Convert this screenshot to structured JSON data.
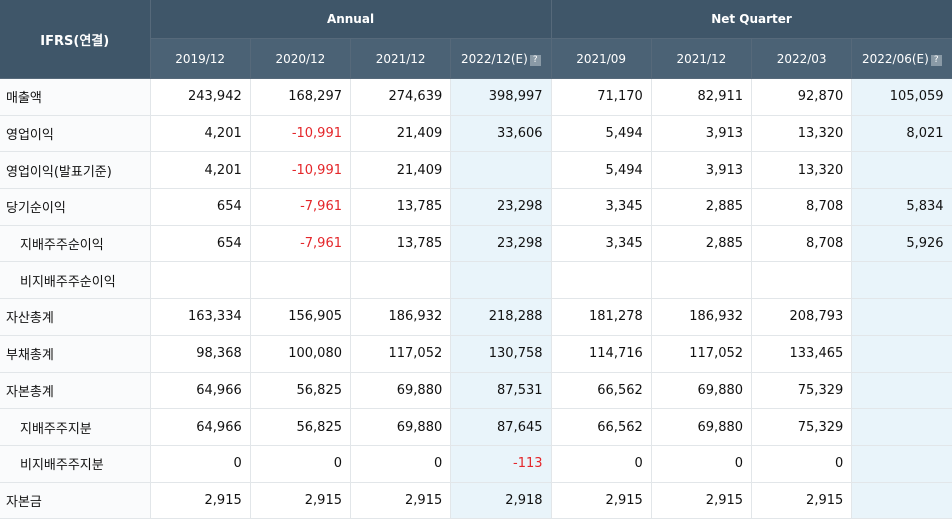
{
  "header": {
    "corner": "IFRS(연결)",
    "annual": "Annual",
    "quarter": "Net Quarter",
    "periods": [
      "2019/12",
      "2020/12",
      "2021/12",
      "2022/12(E)",
      "2021/09",
      "2021/12",
      "2022/03",
      "2022/06(E)"
    ],
    "estimate_marker": "?"
  },
  "rows": [
    {
      "label": "매출액",
      "cells": [
        "243,942",
        "168,297",
        "274,639",
        "398,997",
        "71,170",
        "82,911",
        "92,870",
        "105,059"
      ]
    },
    {
      "label": "영업이익",
      "cells": [
        "4,201",
        "-10,991",
        "21,409",
        "33,606",
        "5,494",
        "3,913",
        "13,320",
        "8,021"
      ]
    },
    {
      "label": "영업이익(발표기준)",
      "cells": [
        "4,201",
        "-10,991",
        "21,409",
        "",
        "5,494",
        "3,913",
        "13,320",
        ""
      ]
    },
    {
      "label": "당기순이익",
      "cells": [
        "654",
        "-7,961",
        "13,785",
        "23,298",
        "3,345",
        "2,885",
        "8,708",
        "5,834"
      ]
    },
    {
      "label": "지배주주순이익",
      "cells": [
        "654",
        "-7,961",
        "13,785",
        "23,298",
        "3,345",
        "2,885",
        "8,708",
        "5,926"
      ]
    },
    {
      "label": "비지배주주순이익",
      "cells": [
        "",
        "",
        "",
        "",
        "",
        "",
        "",
        ""
      ]
    },
    {
      "label": "자산총계",
      "cells": [
        "163,334",
        "156,905",
        "186,932",
        "218,288",
        "181,278",
        "186,932",
        "208,793",
        ""
      ]
    },
    {
      "label": "부채총계",
      "cells": [
        "98,368",
        "100,080",
        "117,052",
        "130,758",
        "114,716",
        "117,052",
        "133,465",
        ""
      ]
    },
    {
      "label": "자본총계",
      "cells": [
        "64,966",
        "56,825",
        "69,880",
        "87,531",
        "66,562",
        "69,880",
        "75,329",
        ""
      ]
    },
    {
      "label": "지배주주지분",
      "cells": [
        "64,966",
        "56,825",
        "69,880",
        "87,645",
        "66,562",
        "69,880",
        "75,329",
        ""
      ]
    },
    {
      "label": "비지배주주지분",
      "cells": [
        "0",
        "0",
        "0",
        "-113",
        "0",
        "0",
        "0",
        ""
      ]
    },
    {
      "label": "자본금",
      "cells": [
        "2,915",
        "2,915",
        "2,915",
        "2,918",
        "2,915",
        "2,915",
        "2,915",
        ""
      ]
    }
  ],
  "colors": {
    "header_bg": "#3f5669",
    "estimate_bg": "#e9f4fa",
    "negative": "#e4262a"
  }
}
